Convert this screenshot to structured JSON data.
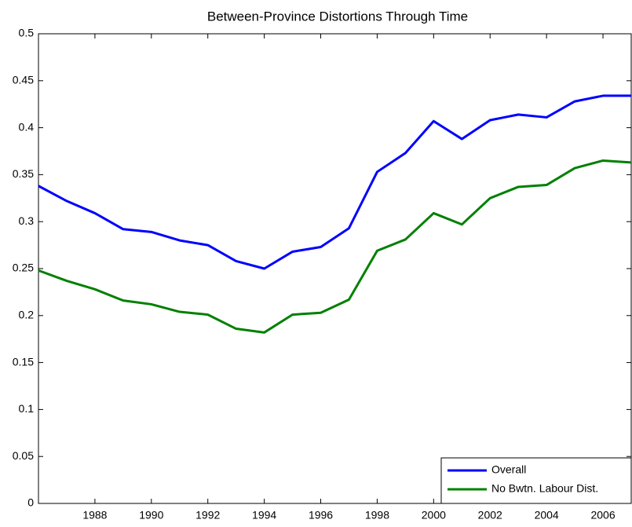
{
  "chart_data": {
    "type": "line",
    "title": "Between-Province Distortions Through Time",
    "x": [
      1986,
      1987,
      1988,
      1989,
      1990,
      1991,
      1992,
      1993,
      1994,
      1995,
      1996,
      1997,
      1998,
      1999,
      2000,
      2001,
      2002,
      2003,
      2004,
      2005,
      2006,
      2007
    ],
    "series": [
      {
        "name": "Overall",
        "color": "#0000ff",
        "values": [
          0.338,
          0.322,
          0.309,
          0.292,
          0.289,
          0.28,
          0.275,
          0.258,
          0.25,
          0.268,
          0.273,
          0.293,
          0.353,
          0.373,
          0.407,
          0.388,
          0.408,
          0.414,
          0.411,
          0.428,
          0.434,
          0.434
        ]
      },
      {
        "name": "No Bwtn. Labour Dist.",
        "color": "#008000",
        "values": [
          0.248,
          0.237,
          0.228,
          0.216,
          0.212,
          0.204,
          0.201,
          0.186,
          0.182,
          0.201,
          0.203,
          0.217,
          0.269,
          0.281,
          0.309,
          0.297,
          0.325,
          0.337,
          0.339,
          0.357,
          0.365,
          0.363
        ]
      }
    ],
    "xlim": [
      1986,
      2007
    ],
    "xticks": [
      1988,
      1990,
      1992,
      1994,
      1996,
      1998,
      2000,
      2002,
      2004,
      2006
    ],
    "ylim": [
      0,
      0.5
    ],
    "yticks": [
      0,
      0.05,
      0.1,
      0.15,
      0.2,
      0.25,
      0.3,
      0.35,
      0.4,
      0.45,
      0.5
    ],
    "legend": "lower right"
  }
}
